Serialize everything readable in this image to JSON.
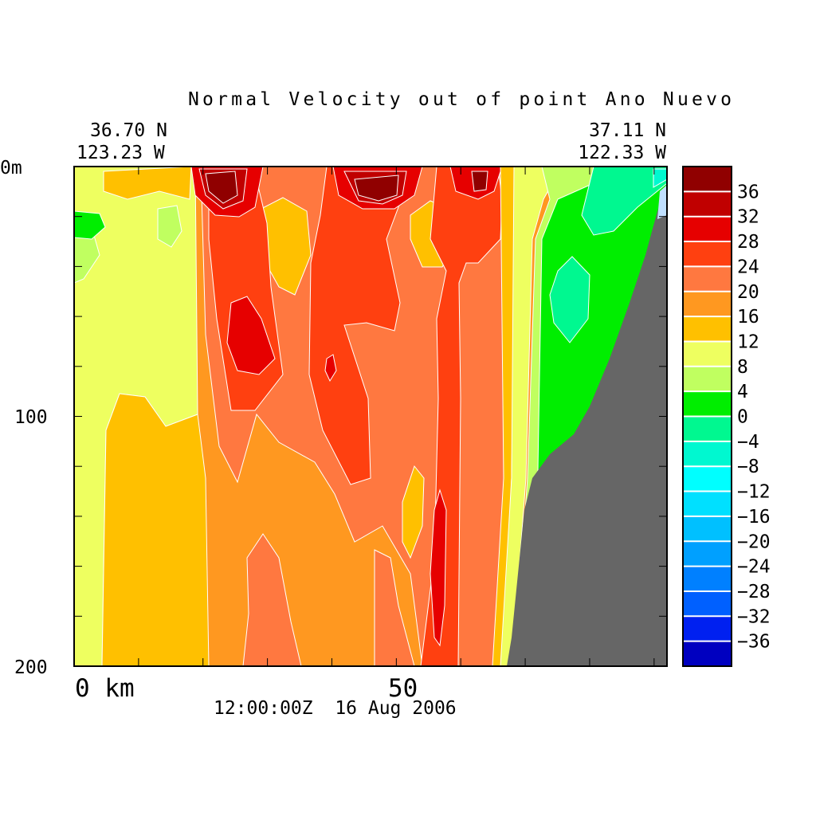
{
  "chart_data": {
    "type": "heatmap",
    "subtype": "filled-contour-section",
    "title": "Normal Velocity out of point Ano Nuevo",
    "left_corner": {
      "lat": "36.70 N",
      "lon": "123.23 W"
    },
    "right_corner": {
      "lat": "37.11 N",
      "lon": "122.33 W"
    },
    "timestamp": "12:00:00Z  16 Aug 2006",
    "xaxis": {
      "unit_label": "km",
      "tick_labels": [
        "0 km",
        "50"
      ],
      "tick_values": [
        0,
        50
      ],
      "range": [
        0,
        92
      ],
      "minor_step": 10
    },
    "yaxis": {
      "tick_labels": [
        "0m",
        "100",
        "200"
      ],
      "tick_values": [
        0,
        100,
        200
      ],
      "range": [
        0,
        200
      ],
      "minor_step": 20,
      "inverted": true
    },
    "colorbar": {
      "levels": [
        36,
        32,
        28,
        24,
        20,
        16,
        12,
        8,
        4,
        0,
        -4,
        -8,
        -12,
        -16,
        -20,
        -24,
        -28,
        -32,
        -36
      ],
      "level_labels": [
        "36",
        "32",
        "28",
        "24",
        "20",
        "16",
        "12",
        "8",
        "4",
        "0",
        "-4",
        "-8",
        "-12",
        "-16",
        "-20",
        "-24",
        "-28",
        "-32",
        "-36"
      ],
      "colors": [
        "#900000",
        "#c00000",
        "#e60000",
        "#ff4010",
        "#ff7840",
        "#ff9820",
        "#ffc000",
        "#eeff60",
        "#c0ff60",
        "#00ee00",
        "#00f890",
        "#00f8d0",
        "#00ffff",
        "#00e0ff",
        "#00c0ff",
        "#00a0ff",
        "#0080ff",
        "#0060ff",
        "#0020f0",
        "#0000c0"
      ]
    },
    "land_color": "#666666"
  }
}
